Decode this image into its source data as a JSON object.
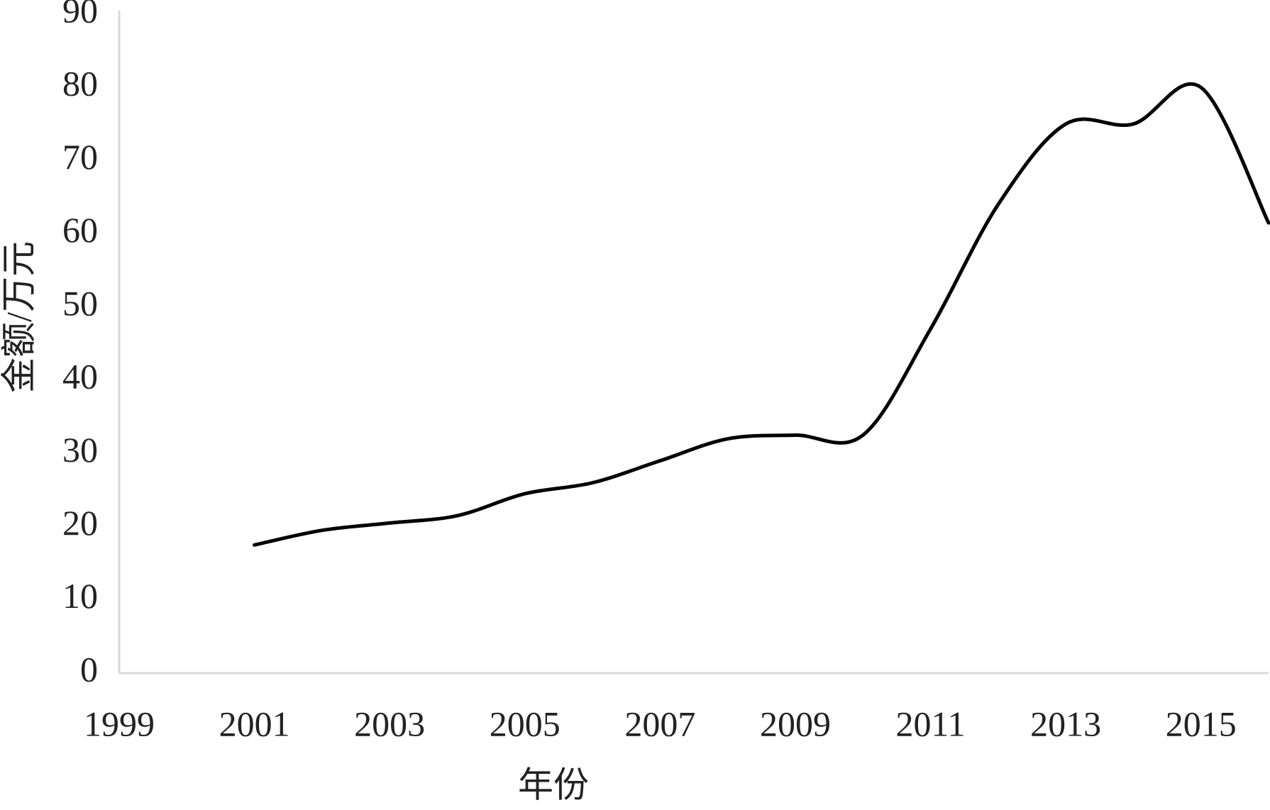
{
  "chart_data": {
    "type": "line",
    "x_label": "年份",
    "y_label": "金额/万元",
    "x": [
      2001,
      2002,
      2003,
      2004,
      2005,
      2006,
      2007,
      2008,
      2009,
      2010,
      2011,
      2012,
      2013,
      2014,
      2015,
      2016
    ],
    "series": [
      {
        "name": "金额",
        "color": "#000000",
        "values": [
          17.5,
          19.5,
          20.5,
          21.5,
          24.5,
          26,
          29,
          32,
          32.5,
          32.5,
          47,
          64,
          75,
          75,
          80,
          61.5
        ]
      }
    ],
    "xlim": [
      1999,
      2016
    ],
    "xticks": [
      1999,
      2001,
      2003,
      2005,
      2007,
      2009,
      2011,
      2013,
      2015
    ],
    "ylim": [
      0,
      90
    ],
    "yticks": [
      0,
      10,
      20,
      30,
      40,
      50,
      60,
      70,
      80,
      90
    ],
    "smooth": true,
    "grid": false
  }
}
